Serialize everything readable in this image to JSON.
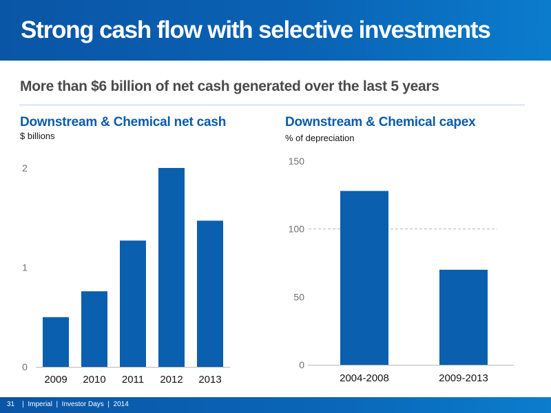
{
  "header": {
    "title": "Strong cash flow with selective investments"
  },
  "subtitle": "More than $6 billion of net cash generated over the last 5 years",
  "colors": {
    "brand_blue": "#0a5bab",
    "bar_blue": "#0a5fae",
    "footer_blue": "#0a62b4"
  },
  "footer": {
    "text": "31    |  Imperial  |  Investor Days  |  2014"
  },
  "chart_data": [
    {
      "type": "bar",
      "title": "Downstream & Chemical net cash",
      "ylabel": "$ billions",
      "xlabel": "",
      "categories": [
        "2009",
        "2010",
        "2011",
        "2012",
        "2013"
      ],
      "values": [
        0.5,
        0.76,
        1.27,
        2.0,
        1.47
      ],
      "ylim": [
        0,
        2
      ],
      "yticks": [
        0,
        1,
        2
      ],
      "grid": false,
      "legend": "none"
    },
    {
      "type": "bar",
      "title": "Downstream & Chemical capex",
      "ylabel": "% of depreciation",
      "xlabel": "",
      "categories": [
        "2004-2008",
        "2009-2013"
      ],
      "values": [
        128,
        70
      ],
      "ylim": [
        0,
        150
      ],
      "yticks": [
        0,
        50,
        100,
        150
      ],
      "reference_line": 100,
      "grid": false,
      "legend": "none"
    }
  ]
}
